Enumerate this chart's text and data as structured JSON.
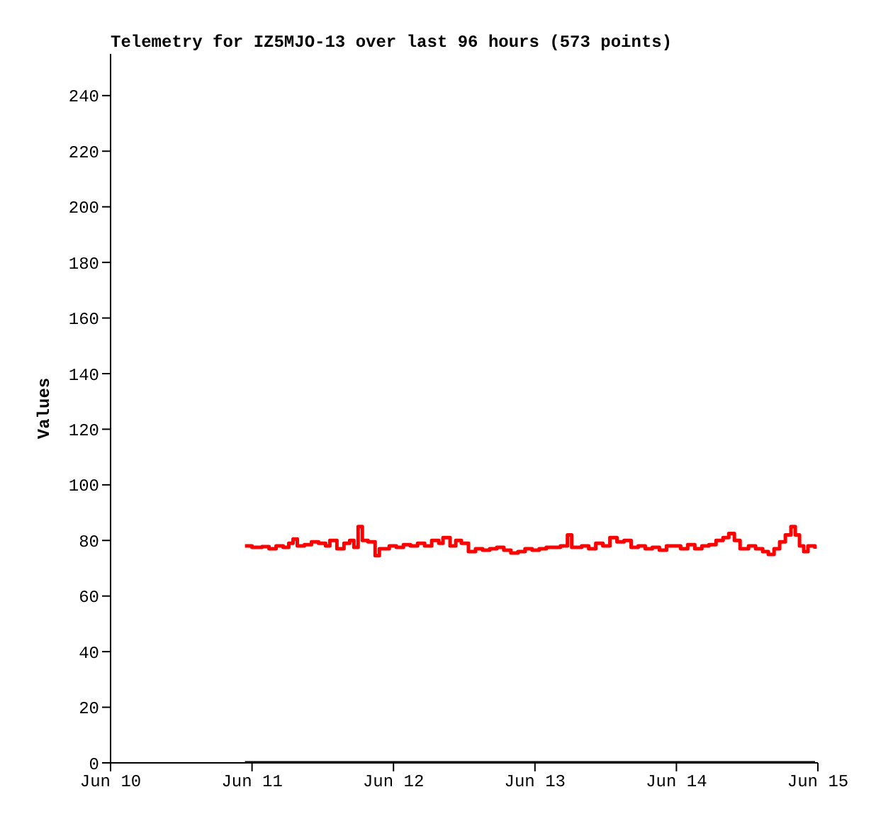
{
  "chart_data": {
    "type": "step",
    "title": "Telemetry for IZ5MJO-13 over last 96 hours (573 points)",
    "ylabel": "Values",
    "xlim": [
      "--06-10",
      "--06-15"
    ],
    "xticks": [
      {
        "value": "--06-10",
        "label": "Jun 10"
      },
      {
        "value": "--06-11",
        "label": "Jun 11"
      },
      {
        "value": "--06-12",
        "label": "Jun 12"
      },
      {
        "value": "--06-13",
        "label": "Jun 13"
      },
      {
        "value": "--06-14",
        "label": "Jun 14"
      },
      {
        "value": "--06-15",
        "label": "Jun 15"
      }
    ],
    "ylim": [
      0,
      255
    ],
    "yticks": [
      0,
      20,
      40,
      60,
      80,
      100,
      120,
      140,
      160,
      180,
      200,
      220,
      240
    ],
    "grid": false,
    "marker": "none",
    "line_style": "solid",
    "series": [
      {
        "color": "#ff0000",
        "x": [
          "--06-10T22:48",
          "--06-11T00:00",
          "--06-11T01:41",
          "--06-11T02:53",
          "--06-11T04:05",
          "--06-11T05:17",
          "--06-11T06:14",
          "--06-11T06:58",
          "--06-11T07:41",
          "--06-11T08:53",
          "--06-11T10:05",
          "--06-11T11:17",
          "--06-11T12:29",
          "--06-11T13:12",
          "--06-11T14:24",
          "--06-11T15:36",
          "--06-11T16:34",
          "--06-11T17:17",
          "--06-11T18:00",
          "--06-11T18:43",
          "--06-11T19:41",
          "--06-11T20:53",
          "--06-11T21:36",
          "--06-11T23:17",
          "--06-12T00:29",
          "--06-12T01:41",
          "--06-12T02:53",
          "--06-12T04:05",
          "--06-12T05:17",
          "--06-12T06:29",
          "--06-12T07:41",
          "--06-12T08:24",
          "--06-12T09:36",
          "--06-12T10:34",
          "--06-12T11:31",
          "--06-12T12:43",
          "--06-12T13:55",
          "--06-12T15:07",
          "--06-12T16:19",
          "--06-12T17:31",
          "--06-12T18:43",
          "--06-12T19:55",
          "--06-12T21:07",
          "--06-12T22:19",
          "--06-12T23:31",
          "--06-13T00:43",
          "--06-13T01:55",
          "--06-13T04:19",
          "--06-13T05:31",
          "--06-13T06:14",
          "--06-13T07:55",
          "--06-13T09:07",
          "--06-13T10:19",
          "--06-13T11:31",
          "--06-13T12:43",
          "--06-13T13:55",
          "--06-13T15:07",
          "--06-13T16:19",
          "--06-13T17:31",
          "--06-13T18:43",
          "--06-13T19:55",
          "--06-13T21:07",
          "--06-13T22:19",
          "--06-14T00:43",
          "--06-14T01:55",
          "--06-14T03:07",
          "--06-14T04:19",
          "--06-14T05:31",
          "--06-14T06:43",
          "--06-14T07:55",
          "--06-14T08:53",
          "--06-14T09:50",
          "--06-14T10:48",
          "--06-14T12:14",
          "--06-14T13:26",
          "--06-14T14:38",
          "--06-14T15:36",
          "--06-14T16:34",
          "--06-14T17:31",
          "--06-14T18:29",
          "--06-14T19:26",
          "--06-14T20:10",
          "--06-14T20:53",
          "--06-14T21:36",
          "--06-14T22:19",
          "--06-14T23:31"
        ],
        "values": [
          78,
          77.5,
          77.8,
          77,
          78,
          77.5,
          79,
          80.5,
          78,
          78.5,
          79.5,
          79,
          78,
          80,
          77,
          79,
          80,
          77.5,
          85,
          80,
          79.5,
          74.5,
          77,
          78,
          77.5,
          78.5,
          78,
          79,
          78,
          80,
          79,
          81,
          78,
          80,
          79,
          76,
          77,
          76.5,
          77,
          77.5,
          76.5,
          75.5,
          76,
          77,
          76.5,
          77,
          77.5,
          78,
          82,
          77.5,
          78,
          77,
          79,
          78,
          81,
          79.5,
          80,
          77.5,
          78,
          77,
          77.5,
          76.5,
          78,
          77,
          78.5,
          77,
          78,
          78.5,
          80,
          81,
          82.5,
          80,
          77,
          78,
          77,
          76,
          75,
          77,
          79.5,
          82,
          85,
          82,
          78,
          76,
          78,
          77
        ]
      },
      {
        "color": "#000000",
        "x": [
          "--06-10T22:48",
          "--06-14T23:31"
        ],
        "values": [
          0,
          0
        ]
      }
    ]
  }
}
